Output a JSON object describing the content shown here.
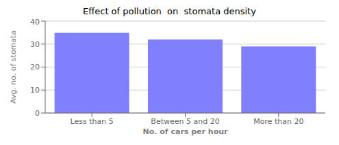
{
  "chart_data": {
    "type": "bar",
    "title": "Effect of pollution  on  stomata density",
    "xlabel": "No. of  cars per hour",
    "ylabel": "Avg. no. of stomata",
    "categories": [
      "Less than 5",
      "Between 5 and 20",
      "More than 20"
    ],
    "values": [
      35,
      32,
      29
    ],
    "color": "#8080FF",
    "ylim": [
      0,
      40
    ],
    "yticks": [
      0,
      10,
      20,
      30,
      40
    ],
    "grid": true
  }
}
